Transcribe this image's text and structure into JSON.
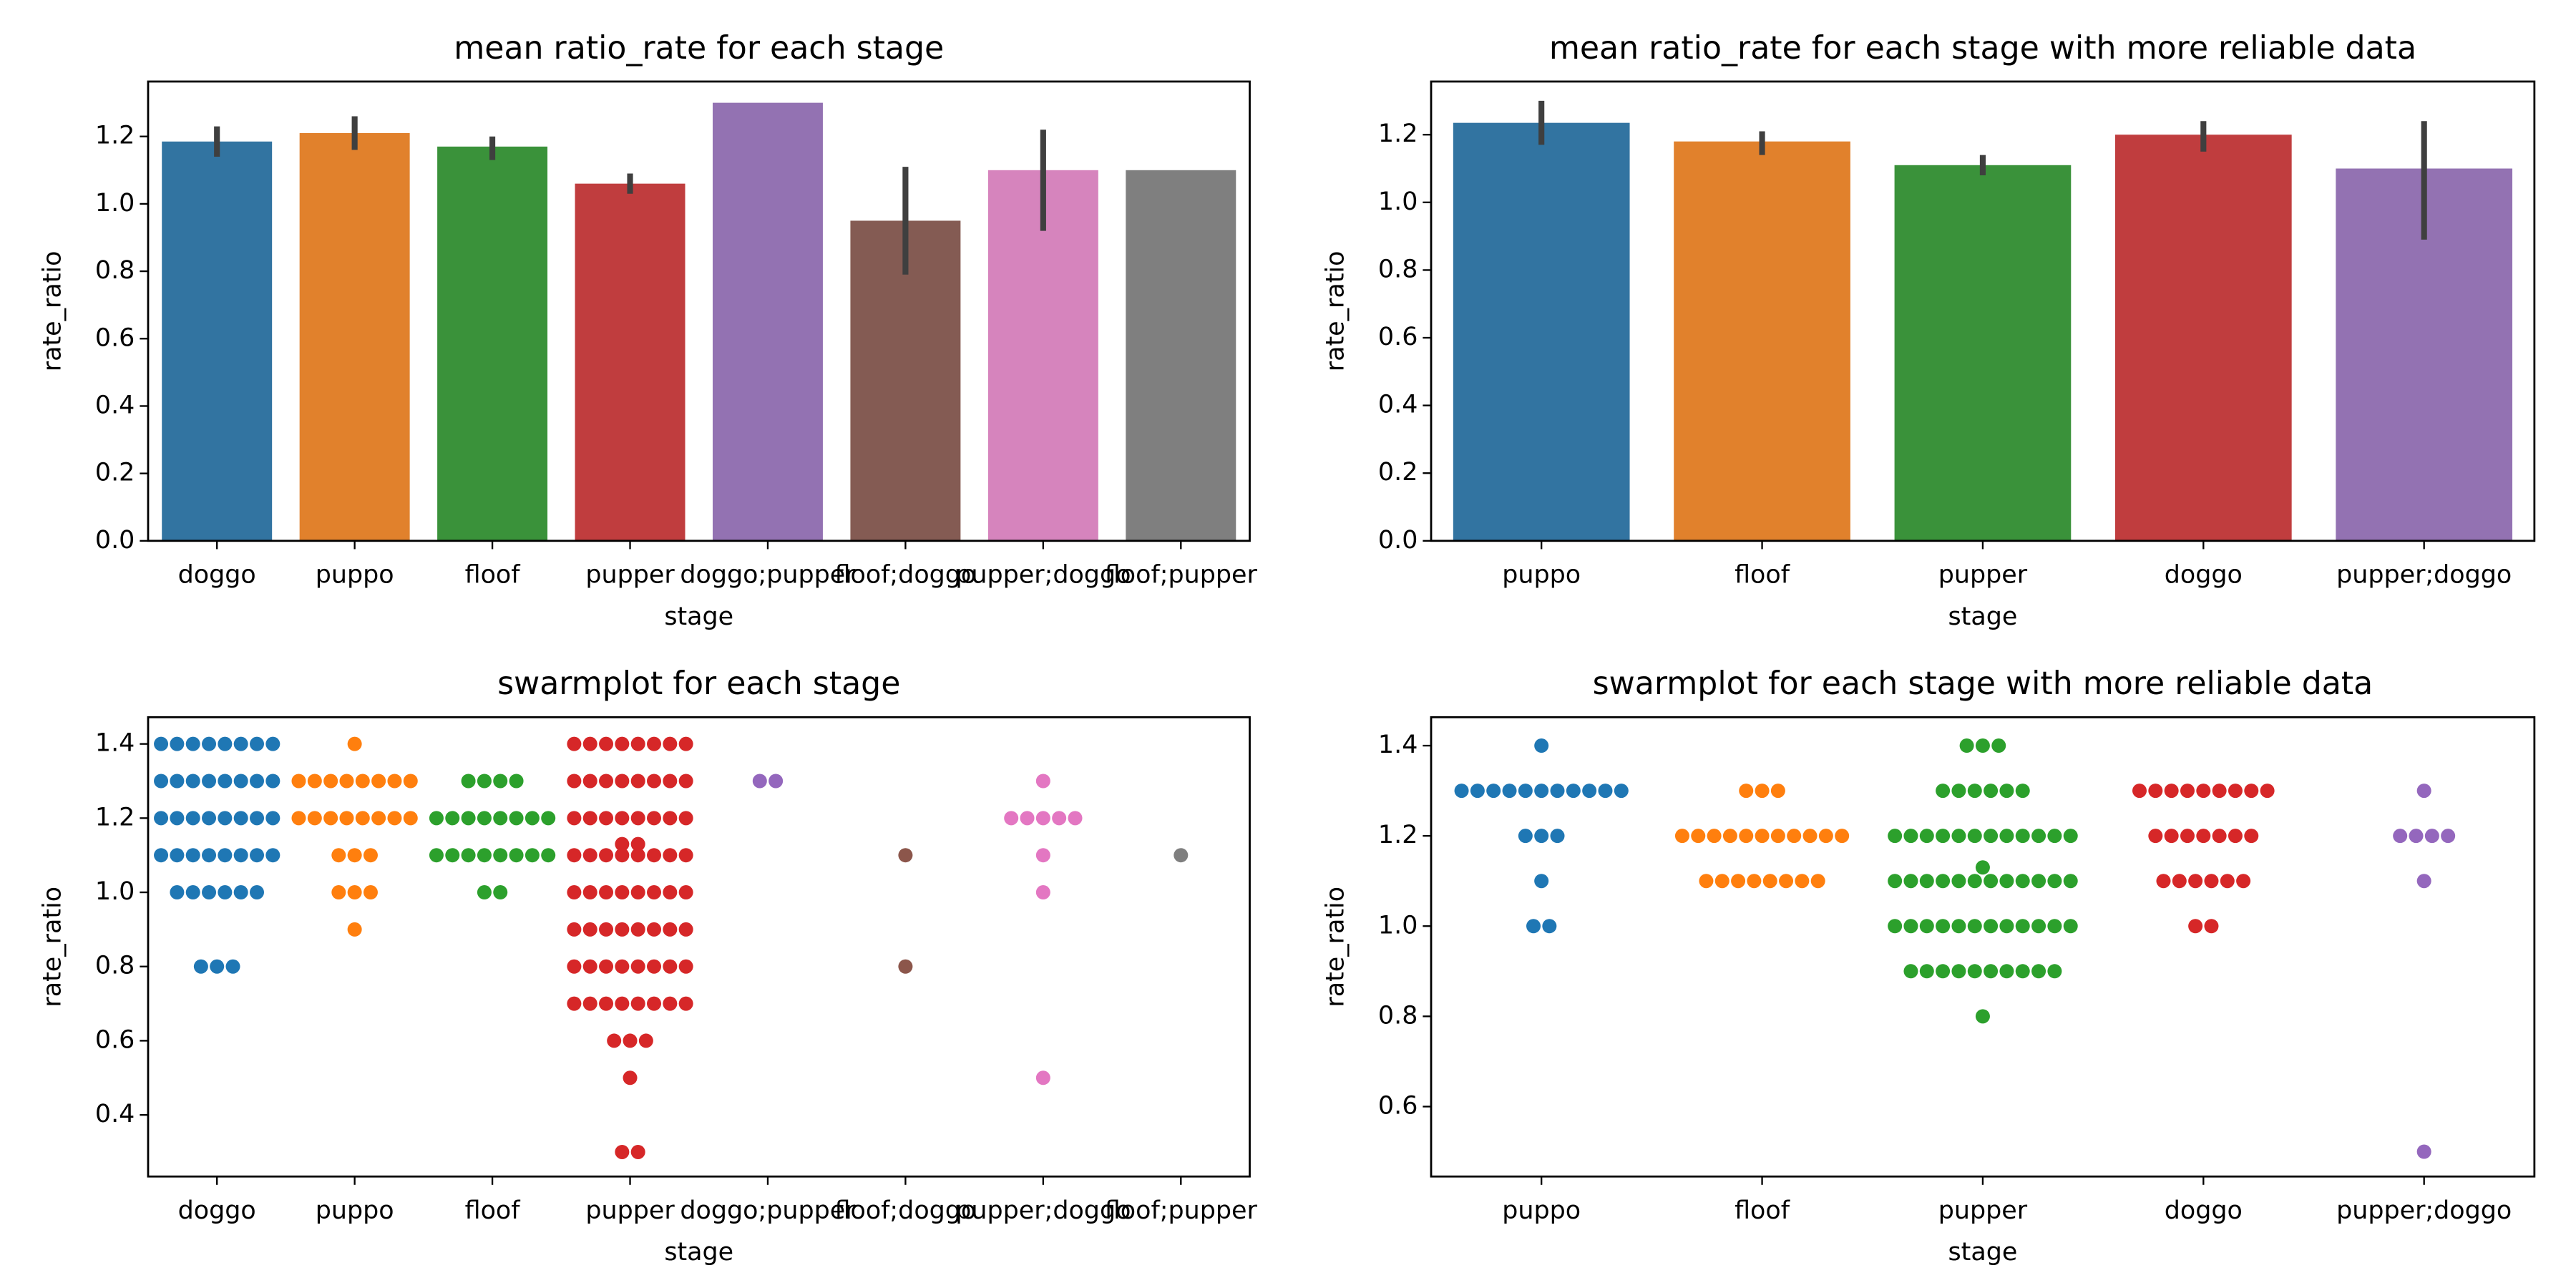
{
  "chart_data": [
    {
      "type": "bar",
      "title": "mean ratio_rate for each stage",
      "x_label": "stage",
      "y_label": "rate_ratio",
      "categories": [
        "doggo",
        "puppo",
        "floof",
        "pupper",
        "doggo;pupper",
        "floof;doggo",
        "pupper;doggo",
        "floof;pupper"
      ],
      "values": [
        1.185,
        1.21,
        1.17,
        1.06,
        1.3,
        0.95,
        1.1,
        1.1
      ],
      "ci_low": [
        1.14,
        1.16,
        1.13,
        1.03,
        null,
        0.79,
        0.92,
        null
      ],
      "ci_high": [
        1.23,
        1.26,
        1.2,
        1.09,
        null,
        1.11,
        1.22,
        null
      ],
      "colors": [
        "#3274a1",
        "#e1812c",
        "#3a923a",
        "#c03d3e",
        "#9372b2",
        "#845b53",
        "#d684bd",
        "#7f7f7f"
      ],
      "ylim": [
        0,
        1.363
      ],
      "yticks": [
        {
          "value": 0,
          "label": "0.0"
        },
        0.2,
        0.4,
        0.6,
        0.8,
        {
          "value": 1,
          "label": "1.0"
        },
        1.2
      ]
    },
    {
      "type": "bar",
      "title": "mean ratio_rate for each stage with more reliable data",
      "x_label": "stage",
      "y_label": "rate_ratio",
      "categories": [
        "puppo",
        "floof",
        "pupper",
        "doggo",
        "pupper;doggo"
      ],
      "values": [
        1.235,
        1.18,
        1.11,
        1.2,
        1.1
      ],
      "ci_low": [
        1.17,
        1.14,
        1.08,
        1.15,
        0.89
      ],
      "ci_high": [
        1.3,
        1.21,
        1.14,
        1.24,
        1.24
      ],
      "colors": [
        "#3274a1",
        "#e1812c",
        "#3a923a",
        "#c03d3e",
        "#9372b2"
      ],
      "ylim": [
        0,
        1.357
      ],
      "yticks": [
        {
          "value": 0,
          "label": "0.0"
        },
        0.2,
        0.4,
        0.6,
        0.8,
        {
          "value": 1,
          "label": "1.0"
        },
        1.2
      ]
    },
    {
      "type": "swarm",
      "title": "swarmplot for each stage",
      "x_label": "stage",
      "y_label": "rate_ratio",
      "categories": [
        "doggo",
        "puppo",
        "floof",
        "pupper",
        "doggo;pupper",
        "floof;doggo",
        "pupper;doggo",
        "floof;pupper"
      ],
      "groups": [
        [
          1.4,
          1.4,
          1.4,
          1.4,
          1.4,
          1.4,
          1.4,
          1.4,
          1.3,
          1.3,
          1.3,
          1.3,
          1.3,
          1.3,
          1.3,
          1.3,
          1.2,
          1.2,
          1.2,
          1.2,
          1.2,
          1.2,
          1.2,
          1.2,
          1.1,
          1.1,
          1.1,
          1.1,
          1.1,
          1.1,
          1.1,
          1.1,
          1.0,
          1.0,
          1.0,
          1.0,
          1.0,
          1.0,
          0.8,
          0.8,
          0.8
        ],
        [
          1.4,
          1.3,
          1.3,
          1.3,
          1.3,
          1.3,
          1.3,
          1.3,
          1.3,
          1.2,
          1.2,
          1.2,
          1.2,
          1.2,
          1.2,
          1.2,
          1.2,
          1.1,
          1.1,
          1.1,
          1.0,
          1.0,
          1.0,
          0.9
        ],
        [
          1.3,
          1.3,
          1.3,
          1.3,
          1.2,
          1.2,
          1.2,
          1.2,
          1.2,
          1.2,
          1.2,
          1.2,
          1.1,
          1.1,
          1.1,
          1.1,
          1.1,
          1.1,
          1.1,
          1.1,
          1.0,
          1.0
        ],
        [
          1.4,
          1.4,
          1.4,
          1.4,
          1.4,
          1.4,
          1.4,
          1.4,
          1.3,
          1.3,
          1.3,
          1.3,
          1.3,
          1.3,
          1.3,
          1.3,
          1.2,
          1.2,
          1.2,
          1.2,
          1.2,
          1.2,
          1.2,
          1.2,
          1.13,
          1.13,
          1.1,
          1.1,
          1.1,
          1.1,
          1.1,
          1.1,
          1.1,
          1.1,
          1.0,
          1.0,
          1.0,
          1.0,
          1.0,
          1.0,
          1.0,
          1.0,
          0.9,
          0.9,
          0.9,
          0.9,
          0.9,
          0.9,
          0.9,
          0.9,
          0.8,
          0.8,
          0.8,
          0.8,
          0.8,
          0.8,
          0.8,
          0.8,
          0.7,
          0.7,
          0.7,
          0.7,
          0.7,
          0.7,
          0.7,
          0.7,
          0.6,
          0.6,
          0.6,
          0.5,
          0.3,
          0.3
        ],
        [
          1.3,
          1.3
        ],
        [
          1.1,
          0.8
        ],
        [
          1.3,
          1.2,
          1.2,
          1.2,
          1.2,
          1.2,
          1.1,
          1.0,
          0.5
        ],
        [
          1.1
        ]
      ],
      "colors": [
        "#1f77b4",
        "#ff7f0e",
        "#2ca02c",
        "#d62728",
        "#9467bd",
        "#8c564b",
        "#e377c2",
        "#7f7f7f"
      ],
      "ylim": [
        0.234,
        1.472
      ],
      "yticks": [
        0.4,
        0.6,
        0.8,
        {
          "value": 1,
          "label": "1.0"
        },
        1.2,
        1.4
      ]
    },
    {
      "type": "swarm",
      "title": "swarmplot for each stage with more reliable data",
      "x_label": "stage",
      "y_label": "rate_ratio",
      "categories": [
        "puppo",
        "floof",
        "pupper",
        "doggo",
        "pupper;doggo"
      ],
      "groups": [
        [
          1.4,
          1.3,
          1.3,
          1.3,
          1.3,
          1.3,
          1.3,
          1.3,
          1.3,
          1.3,
          1.3,
          1.3,
          1.2,
          1.2,
          1.2,
          1.1,
          1.0,
          1.0
        ],
        [
          1.3,
          1.3,
          1.3,
          1.2,
          1.2,
          1.2,
          1.2,
          1.2,
          1.2,
          1.2,
          1.2,
          1.2,
          1.2,
          1.2,
          1.1,
          1.1,
          1.1,
          1.1,
          1.1,
          1.1,
          1.1,
          1.1
        ],
        [
          1.4,
          1.4,
          1.4,
          1.3,
          1.3,
          1.3,
          1.3,
          1.3,
          1.3,
          1.2,
          1.2,
          1.2,
          1.2,
          1.2,
          1.2,
          1.2,
          1.2,
          1.2,
          1.2,
          1.2,
          1.2,
          1.13,
          1.1,
          1.1,
          1.1,
          1.1,
          1.1,
          1.1,
          1.1,
          1.1,
          1.1,
          1.1,
          1.1,
          1.1,
          1.0,
          1.0,
          1.0,
          1.0,
          1.0,
          1.0,
          1.0,
          1.0,
          1.0,
          1.0,
          1.0,
          1.0,
          0.9,
          0.9,
          0.9,
          0.9,
          0.9,
          0.9,
          0.9,
          0.9,
          0.9,
          0.9,
          0.8
        ],
        [
          1.3,
          1.3,
          1.3,
          1.3,
          1.3,
          1.3,
          1.3,
          1.3,
          1.3,
          1.2,
          1.2,
          1.2,
          1.2,
          1.2,
          1.2,
          1.2,
          1.1,
          1.1,
          1.1,
          1.1,
          1.1,
          1.1,
          1.0,
          1.0
        ],
        [
          1.3,
          1.2,
          1.2,
          1.2,
          1.2,
          1.1,
          0.5
        ]
      ],
      "colors": [
        "#1f77b4",
        "#ff7f0e",
        "#2ca02c",
        "#d62728",
        "#9467bd"
      ],
      "ylim": [
        0.445,
        1.463
      ],
      "yticks": [
        0.6,
        0.8,
        {
          "value": 1,
          "label": "1.0"
        },
        1.2,
        1.4
      ]
    }
  ]
}
